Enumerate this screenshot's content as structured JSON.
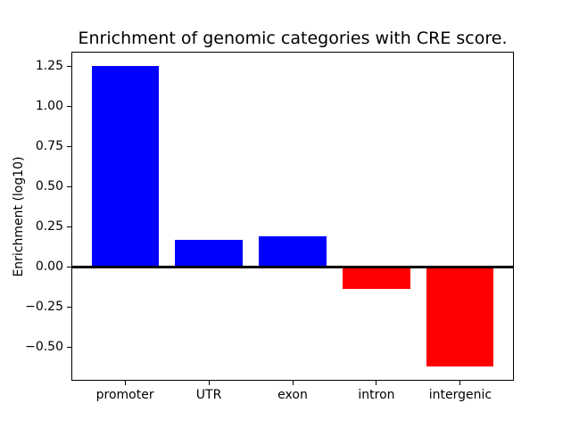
{
  "chart_data": {
    "type": "bar",
    "title": "Enrichment of genomic categories with CRE score.",
    "xlabel": "",
    "ylabel": "Enrichment (log10)",
    "categories": [
      "promoter",
      "UTR",
      "exon",
      "intron",
      "intergenic"
    ],
    "values": [
      1.25,
      0.17,
      0.19,
      -0.14,
      -0.62
    ],
    "bar_colors": [
      "#0000ff",
      "#0000ff",
      "#0000ff",
      "#ff0000",
      "#ff0000"
    ],
    "positive_color": "#0000ff",
    "negative_color": "#ff0000",
    "baseline": 0,
    "baseline_color": "#000000",
    "yticks": [
      1.25,
      1.0,
      0.75,
      0.5,
      0.25,
      0.0,
      -0.25,
      -0.5
    ],
    "ylim": [
      -0.71,
      1.34
    ],
    "xlim": [
      -0.64,
      4.64
    ],
    "bar_width": 0.8,
    "grid": false,
    "legend_position": "none",
    "background_color": "#ffffff"
  }
}
